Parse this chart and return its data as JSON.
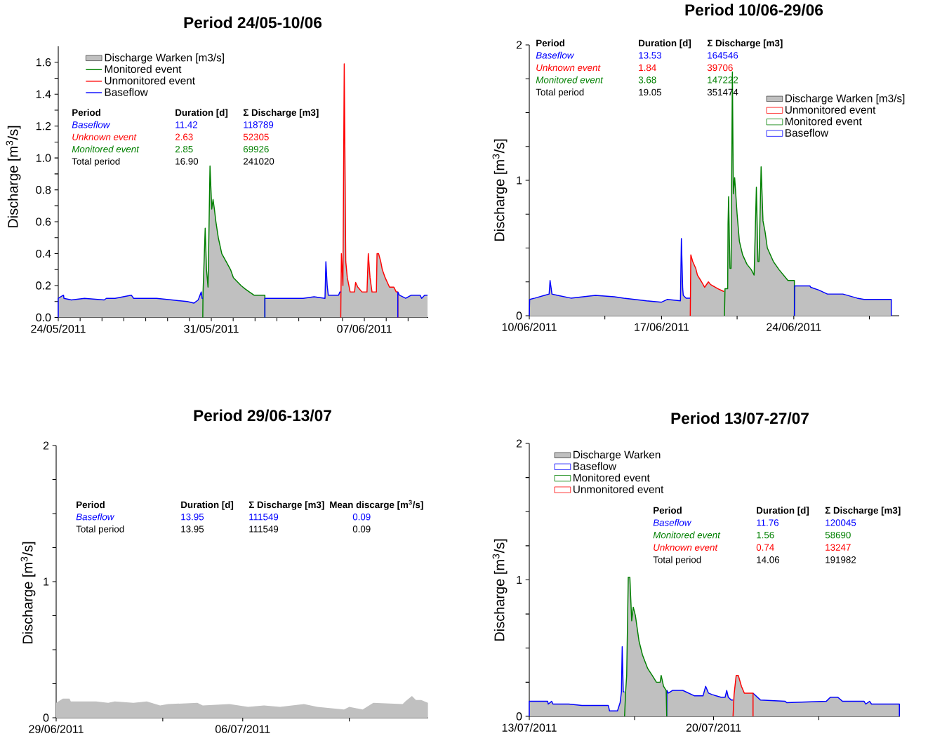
{
  "chart_data": [
    {
      "type": "line",
      "title": "Period 24/05-10/06",
      "ylabel": "Discharge [m$^{3}$/s]",
      "legend": "top left",
      "xlim": [
        "2011-05-24T00:00",
        "2011-06-09T22:05"
      ],
      "ylim": [
        0,
        1.7
      ],
      "xticks": [
        {
          "value": "2011-05-24",
          "label": "24/05/2011"
        },
        {
          "value": "2011-05-25",
          "label": null
        },
        {
          "value": "2011-05-26",
          "label": null
        },
        {
          "value": "2011-05-27",
          "label": null
        },
        {
          "value": "2011-05-28",
          "label": null
        },
        {
          "value": "2011-05-29",
          "label": null
        },
        {
          "value": "2011-05-30",
          "label": null
        },
        {
          "value": "2011-05-31",
          "label": "31/05/2011"
        },
        {
          "value": "2011-06-01",
          "label": null
        },
        {
          "value": "2011-06-02",
          "label": null
        },
        {
          "value": "2011-06-03",
          "label": null
        },
        {
          "value": "2011-06-04",
          "label": null
        },
        {
          "value": "2011-06-05",
          "label": null
        },
        {
          "value": "2011-06-06",
          "label": null
        },
        {
          "value": "2011-06-07",
          "label": "07/06/2011"
        },
        {
          "value": "2011-06-08",
          "label": null
        },
        {
          "value": "2011-06-09",
          "label": null
        }
      ],
      "yticks": [
        {
          "value": 0,
          "label": "0.0"
        },
        {
          "value": 0.1,
          "label": null
        },
        {
          "value": 0.2,
          "label": "0.2"
        },
        {
          "value": 0.3,
          "label": null
        },
        {
          "value": 0.4,
          "label": "0.4"
        },
        {
          "value": 0.5,
          "label": null
        },
        {
          "value": 0.6,
          "label": "0.6"
        },
        {
          "value": 0.7,
          "label": null
        },
        {
          "value": 0.8,
          "label": "0.8"
        },
        {
          "value": 0.9,
          "label": null
        },
        {
          "value": 1.0,
          "label": "1.0"
        },
        {
          "value": 1.1,
          "label": null
        },
        {
          "value": 1.2,
          "label": "1.2"
        },
        {
          "value": 1.3,
          "label": null
        },
        {
          "value": 1.4,
          "label": "1.4"
        },
        {
          "value": 1.5,
          "label": null
        },
        {
          "value": 1.6,
          "label": "1.6"
        }
      ],
      "series": [
        {
          "name": "Discharge Warken [m3/s]",
          "type": "area",
          "color": "#c0c0c0",
          "x": [
            "2011-05-24T00:00",
            "2011-05-24T05:46",
            "2011-05-24T06:14",
            "2011-05-24T14:24",
            "2011-05-25T04:48",
            "2011-05-26T02:24",
            "2011-05-26T04:48",
            "2011-05-26T14:24",
            "2011-05-27T08:10",
            "2011-05-27T10:48",
            "2011-05-28T12:00",
            "2011-05-29T04:48",
            "2011-05-29T21:36",
            "2011-05-30T04:48",
            "2011-05-30T09:36",
            "2011-05-30T12:58",
            "2011-05-30T13:55",
            "2011-05-30T14:38",
            "2011-05-30T14:53",
            "2011-05-30T17:17",
            "2011-05-30T18:43",
            "2011-05-30T20:24",
            "2011-05-30T22:34",
            "2011-05-31T00:29",
            "2011-05-31T01:55",
            "2011-05-31T03:22",
            "2011-05-31T05:02",
            "2011-05-31T07:41",
            "2011-05-31T11:31",
            "2011-05-31T16:19",
            "2011-05-31T21:07",
            "2011-06-01T00:14",
            "2011-06-01T08:38",
            "2011-06-01T12:58",
            "2011-06-01T17:46",
            "2011-06-01T22:48",
            "2011-06-02T10:48",
            "2011-06-02T11:02",
            "2011-06-04T04:48",
            "2011-06-04T16:48",
            "2011-06-05T04:48",
            "2011-06-05T05:46",
            "2011-06-05T07:12",
            "2011-06-05T08:24",
            "2011-06-05T19:41",
            "2011-06-05T21:07",
            "2011-06-05T22:05",
            "2011-06-05T22:19",
            "2011-06-05T22:48",
            "2011-06-06T00:29",
            "2011-06-06T01:55",
            "2011-06-06T03:36",
            "2011-06-06T05:17",
            "2011-06-06T08:24",
            "2011-06-06T13:12",
            "2011-06-06T14:24",
            "2011-06-06T16:48",
            "2011-06-06T21:22",
            "2011-06-07T02:53",
            "2011-06-07T04:19",
            "2011-06-07T06:14",
            "2011-06-07T08:24",
            "2011-06-07T13:12",
            "2011-06-07T13:55",
            "2011-06-07T15:36",
            "2011-06-07T18:00",
            "2011-06-07T19:41",
            "2011-06-07T22:48",
            "2011-06-08T03:36",
            "2011-06-08T08:24",
            "2011-06-08T11:02",
            "2011-06-08T12:43",
            "2011-06-08T12:58",
            "2011-06-08T14:24",
            "2011-06-08T21:22",
            "2011-06-09T03:36",
            "2011-06-09T13:12",
            "2011-06-09T14:53",
            "2011-06-09T18:14",
            "2011-06-09T21:22"
          ],
          "values": [
            0.12,
            0.14,
            0.12,
            0.11,
            0.12,
            0.11,
            0.12,
            0.12,
            0.14,
            0.12,
            0.12,
            0.11,
            0.1,
            0.09,
            0.11,
            0.16,
            0.12,
            0.12,
            0.15,
            0.56,
            0.3,
            0.19,
            0.95,
            0.68,
            0.74,
            0.68,
            0.6,
            0.5,
            0.4,
            0.35,
            0.3,
            0.25,
            0.2,
            0.18,
            0.16,
            0.14,
            0.14,
            0.12,
            0.12,
            0.13,
            0.12,
            0.35,
            0.2,
            0.14,
            0.14,
            0.16,
            0.16,
            0.16,
            0.4,
            0.2,
            1.59,
            0.35,
            0.25,
            0.16,
            0.16,
            0.22,
            0.19,
            0.16,
            0.16,
            0.4,
            0.25,
            0.16,
            0.16,
            0.4,
            0.4,
            0.35,
            0.3,
            0.25,
            0.19,
            0.19,
            0.16,
            0.16,
            0.16,
            0.14,
            0.12,
            0.14,
            0.14,
            0.12,
            0.14,
            0.14
          ]
        },
        {
          "name": "Monitored event",
          "color": "#008000",
          "x": [
            "2011-05-30T14:38",
            "2011-05-30T14:53",
            "2011-05-30T17:17",
            "2011-05-30T18:43",
            "2011-05-30T20:24",
            "2011-05-30T22:34",
            "2011-05-31T00:29",
            "2011-05-31T01:55",
            "2011-05-31T03:22",
            "2011-05-31T05:02",
            "2011-05-31T07:41",
            "2011-05-31T11:31",
            "2011-05-31T16:19",
            "2011-05-31T21:07",
            "2011-06-01T00:14",
            "2011-06-01T08:38",
            "2011-06-01T12:58",
            "2011-06-01T17:46",
            "2011-06-01T22:48",
            "2011-06-02T10:48",
            "2011-06-02T10:48"
          ],
          "values": [
            0,
            0.15,
            0.56,
            0.3,
            0.19,
            0.95,
            0.68,
            0.74,
            0.68,
            0.6,
            0.5,
            0.4,
            0.35,
            0.3,
            0.25,
            0.2,
            0.18,
            0.16,
            0.14,
            0.14,
            0
          ]
        },
        {
          "name": "Unmonitored event",
          "color": "#ff0000",
          "x": [
            "2011-06-05T22:05",
            "2011-06-05T22:19",
            "2011-06-05T22:48",
            "2011-06-06T00:29",
            "2011-06-06T01:55",
            "2011-06-06T03:36",
            "2011-06-06T05:17",
            "2011-06-06T08:24",
            "2011-06-06T13:12",
            "2011-06-06T14:24",
            "2011-06-06T16:48",
            "2011-06-06T21:22",
            "2011-06-07T02:53",
            "2011-06-07T04:19",
            "2011-06-07T06:14",
            "2011-06-07T08:24",
            "2011-06-07T13:12",
            "2011-06-07T13:55",
            "2011-06-07T15:36",
            "2011-06-07T18:00",
            "2011-06-07T19:41",
            "2011-06-07T22:48",
            "2011-06-08T03:36",
            "2011-06-08T08:24",
            "2011-06-08T11:02",
            "2011-06-08T12:43",
            "2011-06-08T12:43"
          ],
          "values": [
            0,
            0.16,
            0.4,
            0.2,
            1.59,
            0.35,
            0.25,
            0.16,
            0.16,
            0.22,
            0.19,
            0.16,
            0.16,
            0.4,
            0.25,
            0.16,
            0.16,
            0.4,
            0.4,
            0.35,
            0.3,
            0.25,
            0.19,
            0.19,
            0.16,
            0.16,
            0
          ]
        },
        {
          "name": "Baseflow",
          "color": "#0000ff",
          "x": [
            "2011-05-24T00:00",
            "2011-05-24T00:00",
            "2011-05-24T05:46",
            "2011-05-24T06:14",
            "2011-05-24T14:24",
            "2011-05-25T04:48",
            "2011-05-26T02:24",
            "2011-05-26T04:48",
            "2011-05-26T14:24",
            "2011-05-27T08:10",
            "2011-05-27T10:48",
            "2011-05-28T12:00",
            "2011-05-29T04:48",
            "2011-05-29T21:36",
            "2011-05-30T04:48",
            "2011-05-30T09:36",
            "2011-05-30T12:58",
            "2011-05-30T13:55",
            "2011-05-30T14:38",
            null,
            "2011-06-02T10:48",
            "2011-06-02T10:48",
            "2011-06-04T04:48",
            "2011-06-04T16:48",
            "2011-06-05T04:48",
            "2011-06-05T05:46",
            "2011-06-05T07:12",
            "2011-06-05T08:24",
            "2011-06-05T19:41",
            "2011-06-05T21:07",
            "2011-06-05T22:05",
            null,
            "2011-06-08T12:43",
            "2011-06-08T12:43",
            "2011-06-08T14:24",
            "2011-06-08T21:22",
            "2011-06-09T03:36",
            "2011-06-09T13:12",
            "2011-06-09T14:53",
            "2011-06-09T18:14",
            "2011-06-09T21:22"
          ],
          "values": [
            0,
            0.12,
            0.14,
            0.12,
            0.11,
            0.12,
            0.11,
            0.12,
            0.12,
            0.14,
            0.12,
            0.12,
            0.11,
            0.1,
            0.09,
            0.11,
            0.16,
            0.12,
            0.12,
            null,
            0,
            0.12,
            0.12,
            0.13,
            0.12,
            0.35,
            0.2,
            0.14,
            0.14,
            0.16,
            0.16,
            null,
            0,
            0.16,
            0.14,
            0.12,
            0.14,
            0.14,
            0.12,
            0.14,
            0.14
          ]
        }
      ],
      "annotations": [
        "Period",
        "Duration [d]",
        "Σ Discharge [m3]",
        "Baseflow",
        "11.42",
        "118789",
        "Unknown event",
        "2.63",
        "52305",
        "Monitored event",
        "2.85",
        "69926",
        "Total period",
        "16.90",
        "241020"
      ]
    },
    {
      "type": "line",
      "title": "Period 10/06-29/06",
      "ylabel": "Discharge [m$^{3}$/s]",
      "legend": "top right",
      "xlim": [
        "2011-06-10T00:00",
        "2011-06-29T13:55"
      ],
      "ylim": [
        0,
        2
      ],
      "xticks": [
        {
          "value": "2011-06-10",
          "label": "10/06/2011"
        },
        {
          "value": "2011-06-14",
          "label": null
        },
        {
          "value": "2011-06-17",
          "label": "17/06/2011"
        },
        {
          "value": "2011-06-21",
          "label": null
        },
        {
          "value": "2011-06-24",
          "label": "24/06/2011"
        },
        {
          "value": "2011-06-28",
          "label": null
        }
      ],
      "yticks": [
        0,
        {
          "value": 0.25,
          "label": null
        },
        {
          "value": 0.5,
          "label": null
        },
        {
          "value": 0.75,
          "label": null
        },
        1,
        {
          "value": 1.25,
          "label": null
        },
        {
          "value": 1.5,
          "label": null
        },
        {
          "value": 1.75,
          "label": null
        },
        2
      ],
      "series": [
        {
          "name": "Discharge Warken [m3/s]",
          "type": "area",
          "color": "#c0c0c0",
          "x": [
            "2011-06-10T00:29",
            "2011-06-10T07:12",
            "2011-06-10T19:12",
            "2011-06-11T01:12",
            "2011-06-11T02:24",
            "2011-06-11T04:48",
            "2011-06-11T12:00",
            "2011-06-12T04:48",
            "2011-06-13T12:00",
            "2011-06-14T12:00",
            "2011-06-15T00:00",
            "2011-06-16T04:48",
            "2011-06-17T00:00",
            "2011-06-17T07:12",
            "2011-06-18T00:00",
            "2011-06-18T01:12",
            "2011-06-18T02:53",
            "2011-06-18T03:36",
            "2011-06-18T07:12",
            "2011-06-18T12:29",
            "2011-06-18T13:12",
            "2011-06-18T15:36",
            "2011-06-18T19:26",
            "2011-06-18T21:36",
            "2011-06-19T02:53",
            "2011-06-19T06:43",
            "2011-06-19T11:31",
            "2011-06-19T14:24",
            "2011-06-19T23:17",
            "2011-06-20T06:43",
            "2011-06-20T07:12",
            "2011-06-20T08:38",
            "2011-06-20T12:00",
            "2011-06-20T12:29",
            "2011-06-20T13:12",
            "2011-06-20T14:53",
            "2011-06-20T16:19",
            "2011-06-20T18:00",
            "2011-06-20T19:12",
            "2011-06-20T20:53",
            "2011-06-21T00:00",
            "2011-06-21T02:53",
            "2011-06-21T06:58",
            "2011-06-21T12:29",
            "2011-06-21T18:00",
            "2011-06-21T21:36",
            "2011-06-22T00:29",
            "2011-06-22T02:24",
            "2011-06-22T03:50",
            "2011-06-22T06:29",
            "2011-06-22T08:53",
            "2011-06-22T11:31",
            "2011-06-22T14:24",
            "2011-06-22T22:05",
            "2011-06-23T05:17",
            "2011-06-23T16:34",
            "2011-06-24T00:43",
            "2011-06-24T01:12",
            "2011-06-24T20:24",
            "2011-06-24T21:36",
            "2011-06-25T07:41",
            "2011-06-25T18:43",
            "2011-06-26T14:24",
            "2011-06-27T02:24",
            "2011-06-27T08:24",
            "2011-06-27T17:17",
            "2011-06-29T03:50"
          ],
          "values": [
            0.12,
            0.13,
            0.15,
            0.16,
            0.26,
            0.16,
            0.15,
            0.13,
            0.15,
            0.14,
            0.13,
            0.11,
            0.1,
            0.12,
            0.11,
            0.57,
            0.2,
            0.15,
            0.13,
            0.13,
            0.45,
            0.4,
            0.35,
            0.3,
            0.25,
            0.21,
            0.25,
            0.23,
            0.2,
            0.18,
            0.18,
            0.2,
            0.2,
            0.68,
            0.88,
            0.35,
            0.35,
            1.8,
            0.9,
            1.02,
            0.75,
            0.55,
            0.45,
            0.38,
            0.34,
            0.3,
            0.95,
            0.4,
            0.4,
            1.1,
            0.7,
            0.62,
            0.5,
            0.4,
            0.34,
            0.26,
            0.26,
            0.22,
            0.22,
            0.21,
            0.19,
            0.16,
            0.16,
            0.14,
            0.13,
            0.12,
            0.12
          ]
        },
        {
          "name": "Unmonitored event",
          "color": "#ff0000",
          "x": [
            "2011-06-18T12:29",
            "2011-06-18T13:12",
            "2011-06-18T15:36",
            "2011-06-18T19:26",
            "2011-06-18T21:36",
            "2011-06-19T02:53",
            "2011-06-19T06:43",
            "2011-06-19T11:31",
            "2011-06-19T14:24",
            "2011-06-19T23:17",
            "2011-06-20T06:43",
            "2011-06-20T07:12"
          ],
          "values": [
            0,
            0.45,
            0.4,
            0.35,
            0.3,
            0.25,
            0.21,
            0.25,
            0.23,
            0.2,
            0.18,
            0.18
          ]
        },
        {
          "name": "Monitored event",
          "color": "#008000",
          "x": [
            "2011-06-20T07:55",
            "2011-06-20T08:38",
            "2011-06-20T12:00",
            "2011-06-20T12:29",
            "2011-06-20T13:12",
            "2011-06-20T14:53",
            "2011-06-20T16:19",
            "2011-06-20T18:00",
            "2011-06-20T19:12",
            "2011-06-20T20:53",
            "2011-06-21T00:00",
            "2011-06-21T02:53",
            "2011-06-21T06:58",
            "2011-06-21T12:29",
            "2011-06-21T18:00",
            "2011-06-21T21:36",
            "2011-06-22T00:29",
            "2011-06-22T02:24",
            "2011-06-22T03:50",
            "2011-06-22T06:29",
            "2011-06-22T08:53",
            "2011-06-22T11:31",
            "2011-06-22T14:24",
            "2011-06-22T22:05",
            "2011-06-23T05:17",
            "2011-06-23T16:34",
            "2011-06-24T00:43",
            "2011-06-24T00:43"
          ],
          "values": [
            0,
            0.2,
            0.2,
            0.68,
            0.88,
            0.35,
            0.35,
            1.8,
            0.9,
            1.02,
            0.75,
            0.55,
            0.45,
            0.38,
            0.34,
            0.3,
            0.95,
            0.4,
            0.4,
            1.1,
            0.7,
            0.62,
            0.5,
            0.4,
            0.34,
            0.26,
            0.26,
            0
          ]
        },
        {
          "name": "Baseflow",
          "color": "#0000ff",
          "x": [
            "2011-06-10T00:00",
            "2011-06-10T00:29",
            "2011-06-10T07:12",
            "2011-06-10T19:12",
            "2011-06-11T01:12",
            "2011-06-11T02:24",
            "2011-06-11T04:48",
            "2011-06-11T12:00",
            "2011-06-12T04:48",
            "2011-06-13T12:00",
            "2011-06-14T12:00",
            "2011-06-15T00:00",
            "2011-06-16T04:48",
            "2011-06-17T00:00",
            "2011-06-17T07:12",
            "2011-06-18T00:00",
            "2011-06-18T01:12",
            "2011-06-18T02:53",
            "2011-06-18T03:36",
            "2011-06-18T07:12",
            "2011-06-18T12:29",
            null,
            "2011-06-24T00:43",
            "2011-06-24T01:12",
            "2011-06-24T20:24",
            "2011-06-24T21:36",
            "2011-06-25T07:41",
            "2011-06-25T18:43",
            "2011-06-26T14:24",
            "2011-06-27T02:24",
            "2011-06-27T08:24",
            "2011-06-27T17:17",
            "2011-06-29T03:50",
            "2011-06-29T03:50"
          ],
          "values": [
            0,
            0.12,
            0.13,
            0.15,
            0.16,
            0.26,
            0.16,
            0.15,
            0.13,
            0.15,
            0.14,
            0.13,
            0.11,
            0.1,
            0.12,
            0.11,
            0.57,
            0.2,
            0.15,
            0.13,
            0.13,
            null,
            0,
            0.22,
            0.22,
            0.21,
            0.19,
            0.16,
            0.16,
            0.14,
            0.13,
            0.12,
            0.12,
            0
          ]
        }
      ],
      "annotations": [
        "Period",
        "Duration [d]",
        "Σ Discharge [m3]",
        "Baseflow",
        "13.53",
        "164546",
        "Unknown event",
        "1.84",
        "39706",
        "Monitored event",
        "3.68",
        "147222",
        "Total period",
        "19.05",
        "351474"
      ]
    },
    {
      "type": "line",
      "title": "Period 29/06-13/07",
      "ylabel": "Discharge [m$^{3}$/s]",
      "xlim": [
        "2011-06-29T00:00",
        "2011-07-12T23:02"
      ],
      "ylim": [
        0,
        2
      ],
      "xticks": [
        {
          "value": "2011-06-29",
          "label": "29/06/2011"
        },
        {
          "value": "2011-07-03",
          "label": null
        },
        {
          "value": "2011-07-06",
          "label": "06/07/2011"
        },
        {
          "value": "2011-07-10",
          "label": null
        }
      ],
      "yticks": [
        0,
        {
          "value": 0.25,
          "label": null
        },
        {
          "value": 0.5,
          "label": null
        },
        {
          "value": 0.75,
          "label": null
        },
        1,
        {
          "value": 1.25,
          "label": null
        },
        {
          "value": 1.5,
          "label": null
        },
        {
          "value": 1.75,
          "label": null
        },
        2
      ],
      "series": [
        {
          "type": "area",
          "color": "#c0c0c0",
          "x": [
            "2011-06-29T00:00",
            "2011-06-29T06:00",
            "2011-06-29T12:00",
            "2011-06-29T13:12",
            "2011-06-30T12:00",
            "2011-06-30T22:48",
            "2011-07-01T04:48",
            "2011-07-01T21:36",
            "2011-07-02T09:36",
            "2011-07-02T21:36",
            "2011-07-03T04:48",
            "2011-07-04T07:12",
            "2011-07-04T12:00",
            "2011-07-05T12:00",
            "2011-07-06T04:48",
            "2011-07-06T19:12",
            "2011-07-07T09:36",
            "2011-07-08T07:12",
            "2011-07-08T19:12",
            "2011-07-09T19:12",
            "2011-07-10T00:00",
            "2011-07-10T12:00",
            "2011-07-10T21:36",
            "2011-07-12T00:00",
            "2011-07-12T02:24",
            "2011-07-12T08:24",
            "2011-07-12T12:00",
            "2011-07-12T16:48",
            "2011-07-12T22:48"
          ],
          "values": [
            0.11,
            0.14,
            0.14,
            0.12,
            0.12,
            0.11,
            0.12,
            0.11,
            0.12,
            0.09,
            0.1,
            0.11,
            0.09,
            0.1,
            0.08,
            0.09,
            0.08,
            0.1,
            0.08,
            0.06,
            0.08,
            0.06,
            0.11,
            0.1,
            0.12,
            0.16,
            0.13,
            0.13,
            0.11
          ]
        }
      ],
      "annotations": [
        "Period",
        "Duration [d]",
        "Σ Discharge [m3]",
        "Mean discarge [m$^{3}$/s]",
        "Baseflow",
        "13.95",
        "111549",
        "0.09",
        "Total period",
        "13.95",
        "111549",
        "0.09"
      ]
    },
    {
      "type": "line",
      "title": "Period 13/07-27/07",
      "ylabel": "Discharge [m$^{3}$/s]",
      "legend": "top left",
      "xlim": [
        "2011-07-13T00:00",
        "2011-07-27T01:55"
      ],
      "ylim": [
        0,
        2
      ],
      "xticks": [
        {
          "value": "2011-07-13",
          "label": "13/07/2011"
        },
        {
          "value": "2011-07-17",
          "label": null
        },
        {
          "value": "2011-07-20",
          "label": "20/07/2011"
        },
        {
          "value": "2011-07-24",
          "label": null
        }
      ],
      "yticks": [
        0,
        {
          "value": 0.25,
          "label": null
        },
        {
          "value": 0.5,
          "label": null
        },
        {
          "value": 0.75,
          "label": null
        },
        1,
        {
          "value": 1.25,
          "label": null
        },
        {
          "value": 1.5,
          "label": null
        },
        {
          "value": 1.75,
          "label": null
        },
        2
      ],
      "series": [
        {
          "name": "Discharge Warken",
          "type": "area",
          "color": "#c0c0c0",
          "x": [
            "2011-07-13T00:00",
            "2011-07-13T16:48",
            "2011-07-13T17:17",
            "2011-07-13T20:24",
            "2011-07-13T21:36",
            "2011-07-14T12:00",
            "2011-07-15T00:00",
            "2011-07-16T00:00",
            "2011-07-16T01:12",
            "2011-07-16T08:24",
            "2011-07-16T10:48",
            "2011-07-16T12:00",
            "2011-07-16T12:43",
            "2011-07-16T13:41",
            "2011-07-16T14:38",
            "2011-07-16T15:50",
            "2011-07-16T16:48",
            "2011-07-16T18:14",
            "2011-07-16T19:41",
            "2011-07-16T21:22",
            "2011-07-16T22:48",
            "2011-07-17T00:43",
            "2011-07-17T04:05",
            "2011-07-17T07:12",
            "2011-07-17T12:00",
            "2011-07-17T16:05",
            "2011-07-17T19:55",
            "2011-07-17T23:17",
            "2011-07-18T00:14",
            "2011-07-18T02:24",
            "2011-07-18T04:48",
            "2011-07-18T05:31",
            "2011-07-18T06:43",
            "2011-07-18T10:34",
            "2011-07-18T19:55",
            "2011-07-19T06:43",
            "2011-07-19T14:24",
            "2011-07-19T16:48",
            "2011-07-19T19:26",
            "2011-07-19T22:34",
            "2011-07-20T06:43",
            "2011-07-20T10:34",
            "2011-07-20T12:00",
            "2011-07-20T13:26",
            "2011-07-20T16:05",
            "2011-07-20T17:46",
            "2011-07-20T18:43",
            "2011-07-20T20:38",
            "2011-07-20T22:34",
            "2011-07-21T01:26",
            "2011-07-21T04:05",
            "2011-07-21T12:00",
            "2011-07-21T18:43",
            "2011-07-22T17:17",
            "2011-07-22T18:43",
            "2011-07-24T06:43",
            "2011-07-24T10:34",
            "2011-07-24T17:17",
            "2011-07-24T21:36",
            "2011-07-25T17:17",
            "2011-07-25T18:43",
            "2011-07-25T22:19",
            "2011-07-26T00:00",
            "2011-07-27T01:26"
          ],
          "values": [
            0.11,
            0.11,
            0.09,
            0.11,
            0.09,
            0.09,
            0.08,
            0.08,
            0.04,
            0.04,
            0.1,
            0.18,
            0.51,
            0.18,
            0.18,
            0.18,
            0.3,
            1.02,
            1.02,
            0.7,
            0.8,
            0.74,
            0.55,
            0.45,
            0.35,
            0.3,
            0.25,
            0.25,
            0.3,
            0.22,
            0.19,
            0.19,
            0.17,
            0.19,
            0.19,
            0.15,
            0.15,
            0.22,
            0.17,
            0.16,
            0.14,
            0.14,
            0.19,
            0.14,
            0.12,
            0.12,
            0.16,
            0.3,
            0.3,
            0.22,
            0.17,
            0.17,
            0.12,
            0.11,
            0.1,
            0.11,
            0.14,
            0.14,
            0.11,
            0.11,
            0.09,
            0.11,
            0.09,
            0.09
          ]
        },
        {
          "name": "Baseflow",
          "color": "#0000ff",
          "x": [
            "2011-07-13T00:00",
            "2011-07-13T00:00",
            "2011-07-13T16:48",
            "2011-07-13T17:17",
            "2011-07-13T20:24",
            "2011-07-13T21:36",
            "2011-07-14T12:00",
            "2011-07-15T00:00",
            "2011-07-16T00:00",
            "2011-07-16T01:12",
            "2011-07-16T08:24",
            "2011-07-16T10:48",
            "2011-07-16T12:00",
            "2011-07-16T12:43",
            "2011-07-16T13:41",
            "2011-07-16T14:38",
            null,
            "2011-07-18T05:17",
            "2011-07-18T05:31",
            "2011-07-18T06:43",
            "2011-07-18T10:34",
            "2011-07-18T19:55",
            "2011-07-19T06:43",
            "2011-07-19T14:24",
            "2011-07-19T16:48",
            "2011-07-19T19:26",
            "2011-07-19T22:34",
            "2011-07-20T06:43",
            "2011-07-20T10:34",
            "2011-07-20T12:00",
            "2011-07-20T13:26",
            "2011-07-20T16:05",
            "2011-07-20T17:46",
            null,
            "2011-07-21T12:00",
            "2011-07-21T18:43",
            "2011-07-22T17:17",
            "2011-07-22T18:43",
            "2011-07-24T06:43",
            "2011-07-24T10:34",
            "2011-07-24T17:17",
            "2011-07-24T21:36",
            "2011-07-25T17:17",
            "2011-07-25T18:43",
            "2011-07-25T22:19",
            "2011-07-26T00:00",
            "2011-07-27T01:26",
            "2011-07-27T01:26"
          ],
          "values": [
            0,
            0.11,
            0.11,
            0.09,
            0.11,
            0.09,
            0.09,
            0.08,
            0.08,
            0.04,
            0.04,
            0.1,
            0.18,
            0.51,
            0.18,
            0.18,
            null,
            0,
            0.19,
            0.17,
            0.19,
            0.19,
            0.15,
            0.15,
            0.22,
            0.17,
            0.16,
            0.14,
            0.14,
            0.19,
            0.14,
            0.12,
            0.12,
            null,
            0.17,
            0.12,
            0.11,
            0.1,
            0.11,
            0.14,
            0.14,
            0.11,
            0.11,
            0.09,
            0.11,
            0.09,
            0.09,
            0
          ]
        },
        {
          "name": "Monitored event",
          "color": "#008000",
          "x": [
            "2011-07-16T14:53",
            "2011-07-16T15:50",
            "2011-07-16T16:48",
            "2011-07-16T18:14",
            "2011-07-16T19:41",
            "2011-07-16T21:22",
            "2011-07-16T22:48",
            "2011-07-17T00:43",
            "2011-07-17T04:05",
            "2011-07-17T07:12",
            "2011-07-17T12:00",
            "2011-07-17T16:05",
            "2011-07-17T19:55",
            "2011-07-17T23:17",
            "2011-07-18T00:14",
            "2011-07-18T02:24",
            "2011-07-18T04:48",
            "2011-07-18T05:17"
          ],
          "values": [
            0,
            0.18,
            0.3,
            1.02,
            1.02,
            0.7,
            0.8,
            0.74,
            0.55,
            0.45,
            0.35,
            0.3,
            0.25,
            0.25,
            0.3,
            0.22,
            0.19,
            0
          ]
        },
        {
          "name": "Unmonitored event",
          "color": "#ff0000",
          "x": [
            "2011-07-20T17:46",
            "2011-07-20T18:43",
            "2011-07-20T20:38",
            "2011-07-20T22:34",
            "2011-07-21T01:26",
            "2011-07-21T04:05",
            "2011-07-21T12:00",
            "2011-07-21T12:00"
          ],
          "values": [
            0,
            0.16,
            0.3,
            0.3,
            0.22,
            0.17,
            0.17,
            0
          ]
        }
      ],
      "annotations": [
        "Period",
        "Duration [d]",
        "Σ Discharge [m3]",
        "Baseflow",
        "11.76",
        "120045",
        "Monitored event",
        "1.56",
        "58690",
        "Unknown event",
        "0.74",
        "13247",
        "Total period",
        "14.06",
        "191982"
      ]
    }
  ]
}
